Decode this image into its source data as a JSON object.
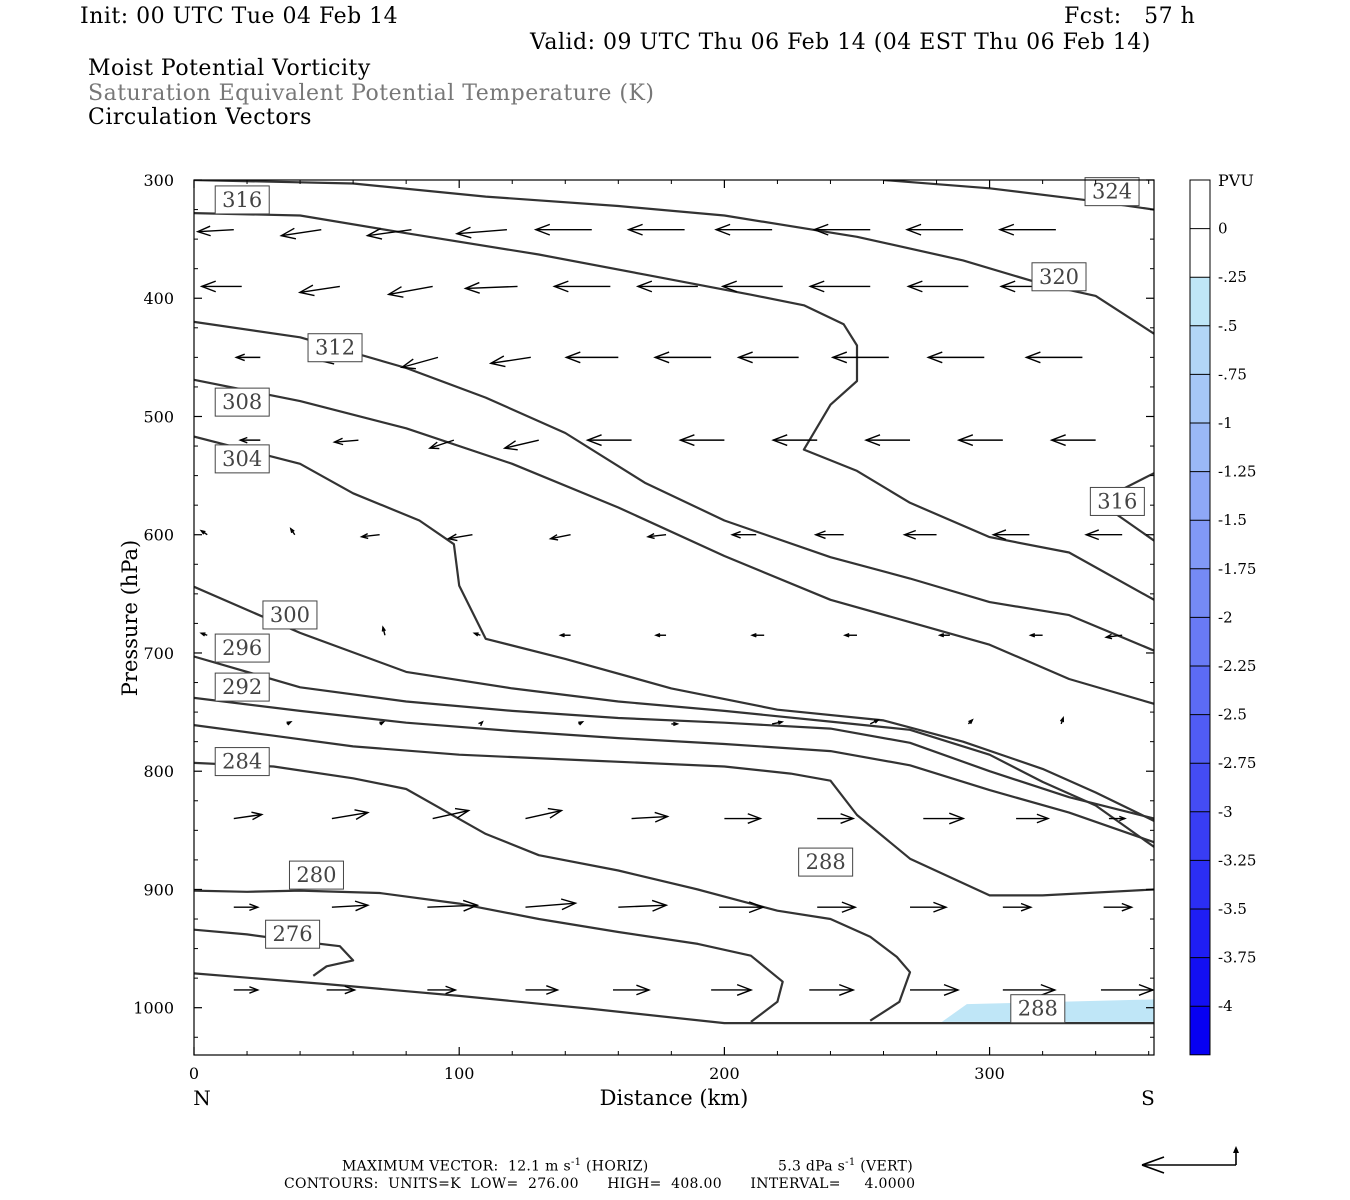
{
  "header": {
    "init": "Init: 00 UTC Tue 04 Feb 14",
    "fcst": "Fcst:   57 h",
    "valid": "Valid: 09 UTC Thu 06 Feb 14 (04 EST Thu 06 Feb 14)",
    "field1": "Moist Potential Vorticity",
    "field2": "Saturation Equivalent Potential Temperature (K)",
    "field3": "Circulation Vectors"
  },
  "chart_data": {
    "type": "cross-section",
    "xlabel": "Distance (km)",
    "ylabel": "Pressure (hPa)",
    "xlim": [
      0,
      362
    ],
    "ylim": [
      1040,
      300
    ],
    "x_ticks": [
      0,
      100,
      200,
      300
    ],
    "y_ticks": [
      300,
      400,
      500,
      600,
      700,
      800,
      900,
      1000
    ],
    "x_end_labels": {
      "left": "N",
      "right": "S"
    },
    "colorbar": {
      "unit": "PVU",
      "levels": [
        "0",
        "-.25",
        "-.5",
        "-.75",
        "-1",
        "-1.25",
        "-1.5",
        "-1.75",
        "-2",
        "-2.25",
        "-2.5",
        "-2.75",
        "-3",
        "-3.25",
        "-3.5",
        "-3.75",
        "-4"
      ],
      "colors": [
        "#ffffff",
        "#ffffff",
        "#bfe6f7",
        "#b2d6f7",
        "#a6c7f7",
        "#9ab8f6",
        "#8ea8f6",
        "#8199f6",
        "#758af5",
        "#697af5",
        "#5c6bf5",
        "#505cf5",
        "#444cf4",
        "#383df4",
        "#2b2ef4",
        "#1f1ef4",
        "#130ff3",
        "#0700f3"
      ]
    },
    "pv_region": {
      "color": "#bfe6f7",
      "x": [
        282,
        362
      ],
      "p_top": 993,
      "p_bottom": 1012
    },
    "theta_contours": [
      {
        "label": "276",
        "label_at": [
          27,
          948
        ],
        "points": [
          [
            0,
            934
          ],
          [
            20,
            938
          ],
          [
            40,
            944
          ],
          [
            55,
            948
          ],
          [
            60,
            960
          ],
          [
            50,
            965
          ],
          [
            45,
            973
          ]
        ]
      },
      {
        "label": "280",
        "label_at": [
          36,
          898
        ],
        "points": [
          [
            0,
            901
          ],
          [
            20,
            902
          ],
          [
            40,
            901
          ],
          [
            70,
            903
          ],
          [
            100,
            912
          ],
          [
            130,
            925
          ],
          [
            160,
            936
          ],
          [
            190,
            946
          ],
          [
            210,
            956
          ],
          [
            222,
            978
          ],
          [
            220,
            995
          ],
          [
            210,
            1012
          ]
        ]
      },
      {
        "label": "284",
        "label_at": [
          8,
          802
        ],
        "points": [
          [
            0,
            793
          ],
          [
            30,
            796
          ],
          [
            60,
            806
          ],
          [
            80,
            815
          ],
          [
            95,
            834
          ],
          [
            110,
            853
          ],
          [
            130,
            871
          ],
          [
            160,
            884
          ],
          [
            190,
            900
          ],
          [
            220,
            918
          ],
          [
            240,
            925
          ],
          [
            255,
            940
          ],
          [
            265,
            957
          ],
          [
            270,
            970
          ],
          [
            266,
            995
          ],
          [
            255,
            1011
          ]
        ]
      },
      {
        "label": "288",
        "label_at": [
          228,
          887
        ],
        "points": [
          [
            0,
            761
          ],
          [
            30,
            770
          ],
          [
            60,
            779
          ],
          [
            100,
            786
          ],
          [
            150,
            791
          ],
          [
            200,
            796
          ],
          [
            225,
            802
          ],
          [
            240,
            808
          ],
          [
            250,
            837
          ],
          [
            270,
            874
          ],
          [
            300,
            905
          ],
          [
            320,
            905
          ],
          [
            362,
            900
          ]
        ]
      },
      {
        "label": "288",
        "label_at": [
          308,
          1011
        ],
        "points": [
          [
            0,
            971
          ],
          [
            50,
            980
          ],
          [
            100,
            990
          ],
          [
            150,
            1001
          ],
          [
            200,
            1013
          ],
          [
            250,
            1013
          ],
          [
            362,
            1013
          ]
        ]
      },
      {
        "label": "292",
        "label_at": [
          8,
          739
        ],
        "points": [
          [
            0,
            738
          ],
          [
            40,
            749
          ],
          [
            80,
            759
          ],
          [
            120,
            766
          ],
          [
            160,
            772
          ],
          [
            200,
            777
          ],
          [
            240,
            783
          ],
          [
            270,
            795
          ],
          [
            300,
            816
          ],
          [
            330,
            835
          ],
          [
            362,
            860
          ]
        ]
      },
      {
        "label": "296",
        "label_at": [
          8,
          706
        ],
        "points": [
          [
            0,
            703
          ],
          [
            40,
            729
          ],
          [
            80,
            741
          ],
          [
            120,
            749
          ],
          [
            160,
            755
          ],
          [
            200,
            759
          ],
          [
            240,
            764
          ],
          [
            270,
            776
          ],
          [
            300,
            800
          ],
          [
            330,
            822
          ],
          [
            362,
            840
          ]
        ]
      },
      {
        "label": "300",
        "label_at": [
          26,
          678
        ],
        "points": [
          [
            0,
            644
          ],
          [
            40,
            683
          ],
          [
            80,
            716
          ],
          [
            120,
            730
          ],
          [
            160,
            741
          ],
          [
            200,
            749
          ],
          [
            240,
            758
          ],
          [
            270,
            765
          ],
          [
            300,
            786
          ],
          [
            320,
            809
          ],
          [
            340,
            829
          ],
          [
            362,
            864
          ]
        ]
      },
      {
        "label": "304",
        "label_at": [
          8,
          546
        ],
        "points": [
          [
            0,
            517
          ],
          [
            40,
            540
          ],
          [
            60,
            565
          ],
          [
            85,
            588
          ],
          [
            98,
            608
          ],
          [
            100,
            643
          ],
          [
            110,
            688
          ],
          [
            140,
            705
          ],
          [
            180,
            730
          ],
          [
            220,
            748
          ],
          [
            260,
            757
          ],
          [
            290,
            775
          ],
          [
            320,
            798
          ],
          [
            340,
            818
          ],
          [
            362,
            842
          ]
        ]
      },
      {
        "label": "308",
        "label_at": [
          8,
          498
        ],
        "points": [
          [
            0,
            469
          ],
          [
            40,
            487
          ],
          [
            80,
            510
          ],
          [
            120,
            540
          ],
          [
            160,
            577
          ],
          [
            200,
            618
          ],
          [
            240,
            655
          ],
          [
            270,
            674
          ],
          [
            300,
            693
          ],
          [
            330,
            722
          ],
          [
            362,
            743
          ]
        ]
      },
      {
        "label": "312",
        "label_at": [
          43,
          452
        ],
        "points": [
          [
            0,
            420
          ],
          [
            40,
            433
          ],
          [
            80,
            459
          ],
          [
            110,
            484
          ],
          [
            140,
            514
          ],
          [
            170,
            556
          ],
          [
            200,
            588
          ],
          [
            240,
            619
          ],
          [
            270,
            637
          ],
          [
            300,
            657
          ],
          [
            330,
            668
          ],
          [
            362,
            698
          ]
        ]
      },
      {
        "label": "316",
        "label_at": [
          8,
          327
        ],
        "points": [
          [
            0,
            328
          ],
          [
            40,
            330
          ],
          [
            80,
            345
          ],
          [
            130,
            363
          ],
          [
            170,
            380
          ],
          [
            210,
            397
          ],
          [
            230,
            406
          ],
          [
            245,
            422
          ],
          [
            250,
            440
          ],
          [
            250,
            470
          ],
          [
            240,
            490
          ],
          [
            230,
            528
          ],
          [
            250,
            546
          ],
          [
            270,
            573
          ],
          [
            300,
            602
          ],
          [
            330,
            615
          ],
          [
            362,
            655
          ]
        ]
      },
      {
        "label": "316",
        "label_at": [
          338,
          582
        ],
        "points": [
          [
            362,
            548
          ],
          [
            340,
            573
          ],
          [
            348,
            583
          ],
          [
            362,
            605
          ]
        ]
      },
      {
        "label": "320",
        "label_at": [
          316,
          392
        ],
        "points": [
          [
            0,
            300
          ],
          [
            60,
            303
          ],
          [
            110,
            314
          ],
          [
            160,
            322
          ],
          [
            200,
            330
          ],
          [
            250,
            348
          ],
          [
            290,
            368
          ],
          [
            320,
            388
          ],
          [
            340,
            398
          ],
          [
            362,
            430
          ]
        ]
      },
      {
        "label": "324",
        "label_at": [
          336,
          320
        ],
        "points": [
          [
            260,
            300
          ],
          [
            300,
            307
          ],
          [
            340,
            318
          ],
          [
            362,
            325
          ]
        ]
      }
    ],
    "circulation_vectors": [
      {
        "p": 342,
        "x": [
          15,
          48,
          82,
          118,
          150,
          185,
          218,
          255,
          290,
          325
        ],
        "u": [
          -18,
          -20,
          -22,
          -25,
          -28,
          -28,
          -28,
          -28,
          -28,
          -28
        ],
        "w": [
          1,
          3,
          3,
          2,
          0,
          0,
          0,
          0,
          0,
          0
        ]
      },
      {
        "p": 390,
        "x": [
          18,
          55,
          90,
          122,
          157,
          190,
          222,
          255,
          292,
          327
        ],
        "u": [
          -20,
          -20,
          -22,
          -26,
          -28,
          -30,
          -30,
          -30,
          -30,
          -30
        ],
        "w": [
          0,
          3,
          4,
          1,
          0,
          0,
          0,
          0,
          0,
          0
        ]
      },
      {
        "p": 450,
        "x": [
          25,
          60,
          92,
          127,
          160,
          195,
          228,
          262,
          298,
          335
        ],
        "u": [
          -12,
          -15,
          -18,
          -20,
          -26,
          -28,
          -30,
          -28,
          -28,
          -28
        ],
        "w": [
          0,
          2,
          5,
          3,
          0,
          0,
          0,
          0,
          0,
          0
        ]
      },
      {
        "p": 520,
        "x": [
          25,
          62,
          98,
          130,
          165,
          200,
          235,
          270,
          305,
          340
        ],
        "u": [
          -10,
          -12,
          -12,
          -17,
          -22,
          -22,
          -22,
          -22,
          -22,
          -22
        ],
        "w": [
          0,
          1,
          4,
          4,
          0,
          0,
          0,
          0,
          0,
          0
        ]
      },
      {
        "p": 600,
        "x": [
          5,
          38,
          70,
          105,
          142,
          178,
          212,
          245,
          280,
          315,
          350
        ],
        "u": [
          -3,
          -2,
          -9,
          -12,
          -10,
          -9,
          -12,
          -14,
          -16,
          -18,
          -18
        ],
        "w": [
          -2,
          -3,
          1,
          2,
          2,
          1,
          0,
          0,
          0,
          0,
          0
        ]
      },
      {
        "p": 685,
        "x": [
          5,
          72,
          108,
          142,
          178,
          215,
          250,
          285,
          320,
          350
        ],
        "u": [
          -3,
          -1,
          -3,
          -5,
          -5,
          -6,
          -6,
          -5,
          -6,
          -8
        ],
        "w": [
          -1,
          -4,
          -1,
          0,
          0,
          0,
          0,
          0,
          0,
          1
        ]
      },
      {
        "p": 760,
        "x": [
          35,
          70,
          108,
          145,
          180,
          218,
          255,
          292,
          327
        ],
        "u": [
          2,
          2,
          1,
          2,
          3,
          5,
          4,
          2,
          1
        ],
        "w": [
          -1,
          -1,
          -1,
          -1,
          0,
          -1,
          -2,
          -2,
          -3
        ]
      },
      {
        "p": 840,
        "x": [
          15,
          52,
          90,
          125,
          165,
          200,
          235,
          275,
          310,
          345
        ],
        "u": [
          14,
          18,
          18,
          18,
          18,
          18,
          18,
          20,
          16,
          8
        ],
        "w": [
          -2,
          -3,
          -4,
          -4,
          -1,
          0,
          0,
          0,
          0,
          0
        ]
      },
      {
        "p": 915,
        "x": [
          15,
          52,
          88,
          125,
          160,
          198,
          235,
          270,
          305,
          343
        ],
        "u": [
          12,
          18,
          25,
          25,
          24,
          22,
          19,
          18,
          14,
          14
        ],
        "w": [
          0,
          -1,
          -1,
          -2,
          -1,
          0,
          0,
          0,
          0,
          0
        ]
      },
      {
        "p": 985,
        "x": [
          15,
          50,
          88,
          125,
          158,
          195,
          232,
          270,
          305,
          342
        ],
        "u": [
          12,
          14,
          14,
          16,
          18,
          20,
          22,
          24,
          26,
          26
        ],
        "w": [
          0,
          0,
          0,
          0,
          0,
          0,
          0,
          0,
          0,
          0
        ]
      }
    ]
  },
  "footer": {
    "max_vector_label": "MAXIMUM VECTOR:",
    "horiz_value": "12.1 m s",
    "horiz_exp": "-1",
    "horiz_tag": "(HORIZ)",
    "vert_value": "5.3 dPa s",
    "vert_exp": "-1",
    "vert_tag": "(VERT)",
    "contours": "CONTOURS:  UNITS=K  LOW=  276.00      HIGH=  408.00      INTERVAL=     4.0000"
  }
}
